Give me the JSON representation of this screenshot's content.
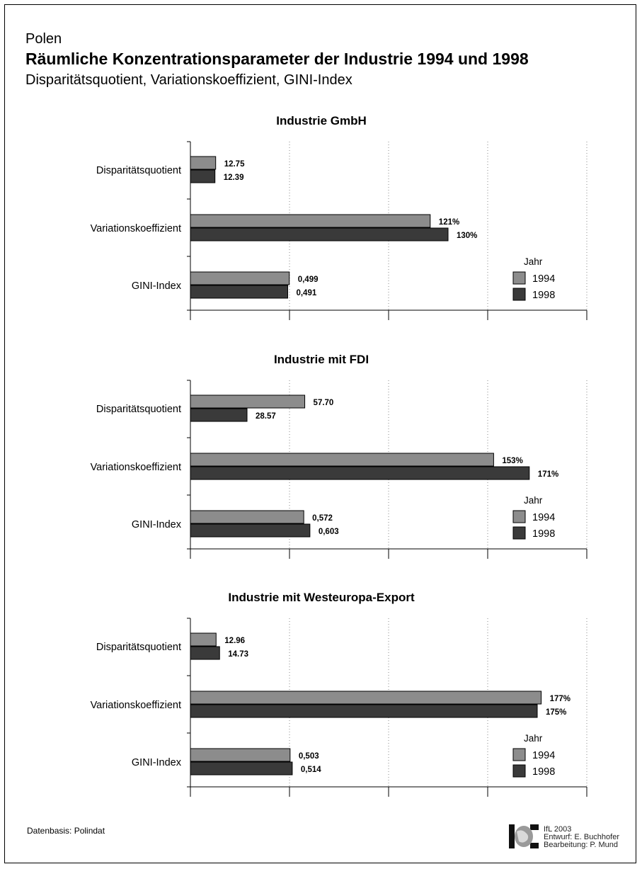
{
  "header": {
    "country": "Polen",
    "title": "Räumliche Konzentrationsparameter der Industrie 1994 und 1998",
    "subtitle": "Disparitätsquotient, Variationskoeffizient, GINI-Index"
  },
  "footer": {
    "source": "Datenbasis: Polindat",
    "credit_line1": "IfL 2003",
    "credit_line2": "Entwurf: E. Buchhofer",
    "credit_line3": "Bearbeitung: P. Mund"
  },
  "colors": {
    "y1994": "#8c8c8c",
    "y1998": "#3a3a3a",
    "grid": "#888888"
  },
  "chart_data": [
    {
      "type": "bar",
      "orientation": "horizontal",
      "title": "Industrie GmbH",
      "categories": [
        "Disparitätsquotient",
        "Variationskoeffizient",
        "GINI-Index"
      ],
      "legend": {
        "title": "Jahr",
        "placement": "bottom-right"
      },
      "series": [
        {
          "name": "1994",
          "values": [
            12.75,
            121,
            0.499
          ],
          "labels": [
            "12.75",
            "121%",
            "0,499"
          ]
        },
        {
          "name": "1998",
          "values": [
            12.39,
            130,
            0.491
          ],
          "labels": [
            "12.39",
            "130%",
            "0,491"
          ]
        }
      ]
    },
    {
      "type": "bar",
      "orientation": "horizontal",
      "title": "Industrie mit FDI",
      "categories": [
        "Disparitätsquotient",
        "Variationskoeffizient",
        "GINI-Index"
      ],
      "legend": {
        "title": "Jahr",
        "placement": "bottom-right"
      },
      "series": [
        {
          "name": "1994",
          "values": [
            57.7,
            153,
            0.572
          ],
          "labels": [
            "57.70",
            "153%",
            "0,572"
          ]
        },
        {
          "name": "1998",
          "values": [
            28.57,
            171,
            0.603
          ],
          "labels": [
            "28.57",
            "171%",
            "0,603"
          ]
        }
      ]
    },
    {
      "type": "bar",
      "orientation": "horizontal",
      "title": "Industrie mit Westeuropa-Export",
      "categories": [
        "Disparitätsquotient",
        "Variationskoeffizient",
        "GINI-Index"
      ],
      "legend": {
        "title": "Jahr",
        "placement": "bottom-right"
      },
      "series": [
        {
          "name": "1994",
          "values": [
            12.96,
            177,
            0.503
          ],
          "labels": [
            "12.96",
            "177%",
            "0,503"
          ]
        },
        {
          "name": "1998",
          "values": [
            14.73,
            175,
            0.514
          ],
          "labels": [
            "14.73",
            "175%",
            "0,514"
          ]
        }
      ]
    }
  ]
}
